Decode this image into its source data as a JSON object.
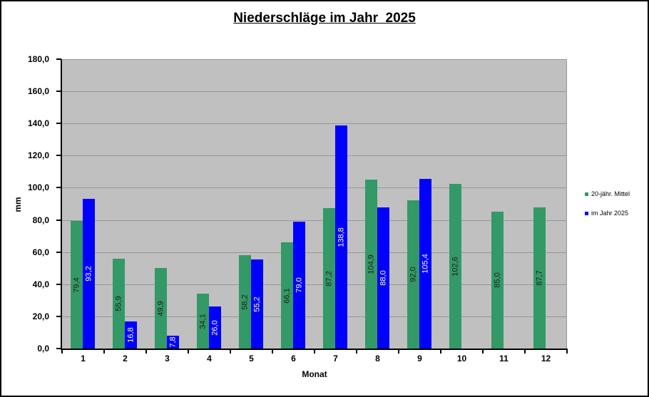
{
  "window": {
    "background": "#FFFFFF",
    "border_color": "#000000"
  },
  "chart_data": {
    "type": "bar",
    "title": "Niederschläge im Jahr  2025",
    "xlabel": "Monat",
    "ylabel": "mm",
    "ylim": [
      0,
      180
    ],
    "ytick_step": 20,
    "ytick_labels": [
      "0,0",
      "20,0",
      "40,0",
      "60,0",
      "80,0",
      "100,0",
      "120,0",
      "140,0",
      "160,0",
      "180,0"
    ],
    "grid": true,
    "legend_position": "right",
    "plot_background": "#C0C0C0",
    "gridline_color": "#969696",
    "categories": [
      "1",
      "2",
      "3",
      "4",
      "5",
      "6",
      "7",
      "8",
      "9",
      "10",
      "11",
      "12"
    ],
    "series": [
      {
        "name": "20-jähr. Mittel",
        "color": "#339966",
        "label_color": "#1F1F1F",
        "values": [
          79.4,
          55.9,
          49.9,
          34.1,
          58.2,
          66.1,
          87.2,
          104.9,
          92.0,
          102.6,
          85.0,
          87.7
        ],
        "labels": [
          "79,4",
          "55,9",
          "49,9",
          "34,1",
          "58,2",
          "66,1",
          "87,2",
          "104,9",
          "92,0",
          "102,6",
          "85,0",
          "87,7"
        ]
      },
      {
        "name": "im Jahr 2025",
        "color": "#0000FF",
        "label_color": "#FFFFFF",
        "values": [
          93.2,
          16.8,
          7.8,
          26.0,
          55.2,
          79.0,
          138.8,
          88.0,
          105.4,
          null,
          null,
          null
        ],
        "labels": [
          "93,2",
          "16,8",
          "7,8",
          "26,0",
          "55,2",
          "79,0",
          "138,8",
          "88,0",
          "105,4",
          null,
          null,
          null
        ]
      }
    ]
  }
}
